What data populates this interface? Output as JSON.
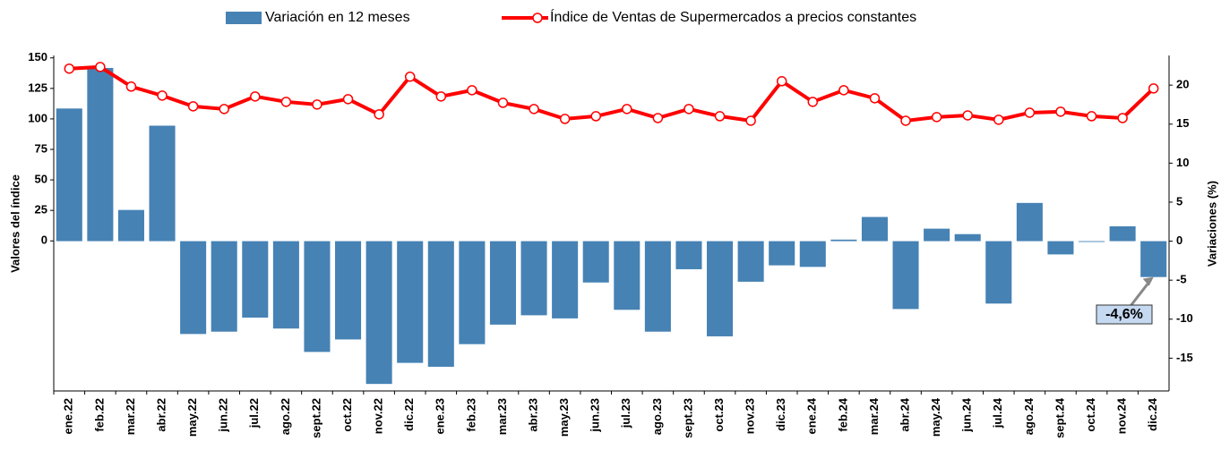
{
  "chart_data": {
    "type": "bar-line",
    "categories": [
      "ene.22",
      "feb.22",
      "mar.22",
      "abr.22",
      "may.22",
      "jun.22",
      "jul.22",
      "ago.22",
      "sept.22",
      "oct.22",
      "nov.22",
      "dic.22",
      "ene.23",
      "feb.23",
      "mar.23",
      "abr.23",
      "may.23",
      "jun.23",
      "jul.23",
      "ago.23",
      "sept.23",
      "oct.23",
      "nov.23",
      "dic.23",
      "ene.24",
      "feb.24",
      "mar.24",
      "abr.24",
      "may.24",
      "jun.24",
      "jul.24",
      "ago.24",
      "sept.24",
      "oct.24",
      "nov.24",
      "dic.24"
    ],
    "series": [
      {
        "name": "Variación en 12 meses",
        "type": "bar",
        "axis": "y2",
        "color": "#4682b4",
        "values": [
          17.0,
          22.2,
          4.0,
          14.8,
          -11.9,
          -11.6,
          -9.8,
          -11.2,
          -14.2,
          -12.6,
          -18.3,
          -15.6,
          -16.1,
          -13.2,
          -10.7,
          -9.5,
          -9.9,
          -5.3,
          -8.8,
          -11.6,
          -3.6,
          -12.2,
          -5.2,
          -3.1,
          -3.3,
          0.2,
          3.1,
          -8.7,
          1.6,
          0.9,
          -8.0,
          4.9,
          -1.7,
          -0.1,
          1.9,
          -4.6
        ]
      },
      {
        "name": "Índice de Ventas de Supermercados a precios constantes",
        "type": "line",
        "axis": "y",
        "color": "#ff0000",
        "values": [
          141.2,
          142.6,
          126.5,
          119.1,
          110.3,
          108.1,
          118.4,
          114.0,
          111.8,
          116.2,
          103.7,
          134.6,
          118.4,
          123.5,
          113.2,
          108.1,
          100.0,
          102.2,
          108.1,
          100.7,
          108.1,
          102.2,
          98.5,
          130.9,
          114.0,
          123.5,
          116.9,
          98.5,
          101.5,
          102.9,
          99.3,
          105.1,
          105.9,
          102.2,
          100.7,
          125.0
        ]
      }
    ],
    "ylabel": "Valores del índice",
    "y2label": "Variaciones (%)",
    "ylim": [
      -123,
      152
    ],
    "yticks": [
      0,
      25,
      50,
      75,
      100,
      125,
      150
    ],
    "y2lim": [
      -19.2,
      23.8
    ],
    "y2ticks": [
      -15,
      -10,
      -5,
      0,
      5,
      10,
      15,
      20
    ],
    "annotation": "-4,6%"
  }
}
